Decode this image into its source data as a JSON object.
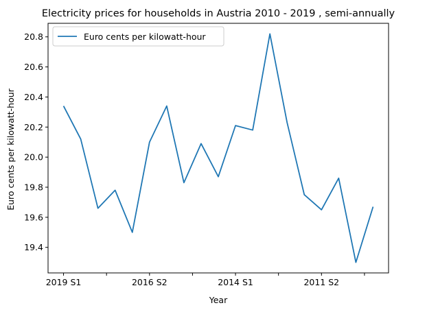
{
  "chart_data": {
    "type": "line",
    "title": "Electricity prices for households in Austria 2010 - 2019 , semi-annually",
    "xlabel": "Year",
    "ylabel": "Euro cents per kilowatt-hour",
    "ylim": [
      19.23,
      20.89
    ],
    "grid": false,
    "legend_position": "top-left",
    "series": [
      {
        "name": "Euro cents per kilowatt-hour",
        "color": "#1f77b4",
        "values": [
          20.34,
          20.12,
          19.66,
          19.78,
          19.5,
          20.1,
          20.34,
          19.83,
          20.09,
          19.87,
          20.21,
          20.18,
          20.82,
          20.23,
          19.75,
          19.65,
          19.86,
          19.3,
          19.67
        ]
      }
    ],
    "x_tick_labels": [
      {
        "index": 0,
        "label": "2019 S1"
      },
      {
        "index": 5,
        "label": "2016 S2"
      },
      {
        "index": 10,
        "label": "2014 S1"
      },
      {
        "index": 15,
        "label": "2011 S2"
      }
    ],
    "x_minor_tick_indices": [
      2.5,
      7.5,
      12.5,
      17.5
    ],
    "y_ticks": [
      "19.4",
      "19.6",
      "19.8",
      "20.0",
      "20.2",
      "20.4",
      "20.6",
      "20.8"
    ]
  }
}
